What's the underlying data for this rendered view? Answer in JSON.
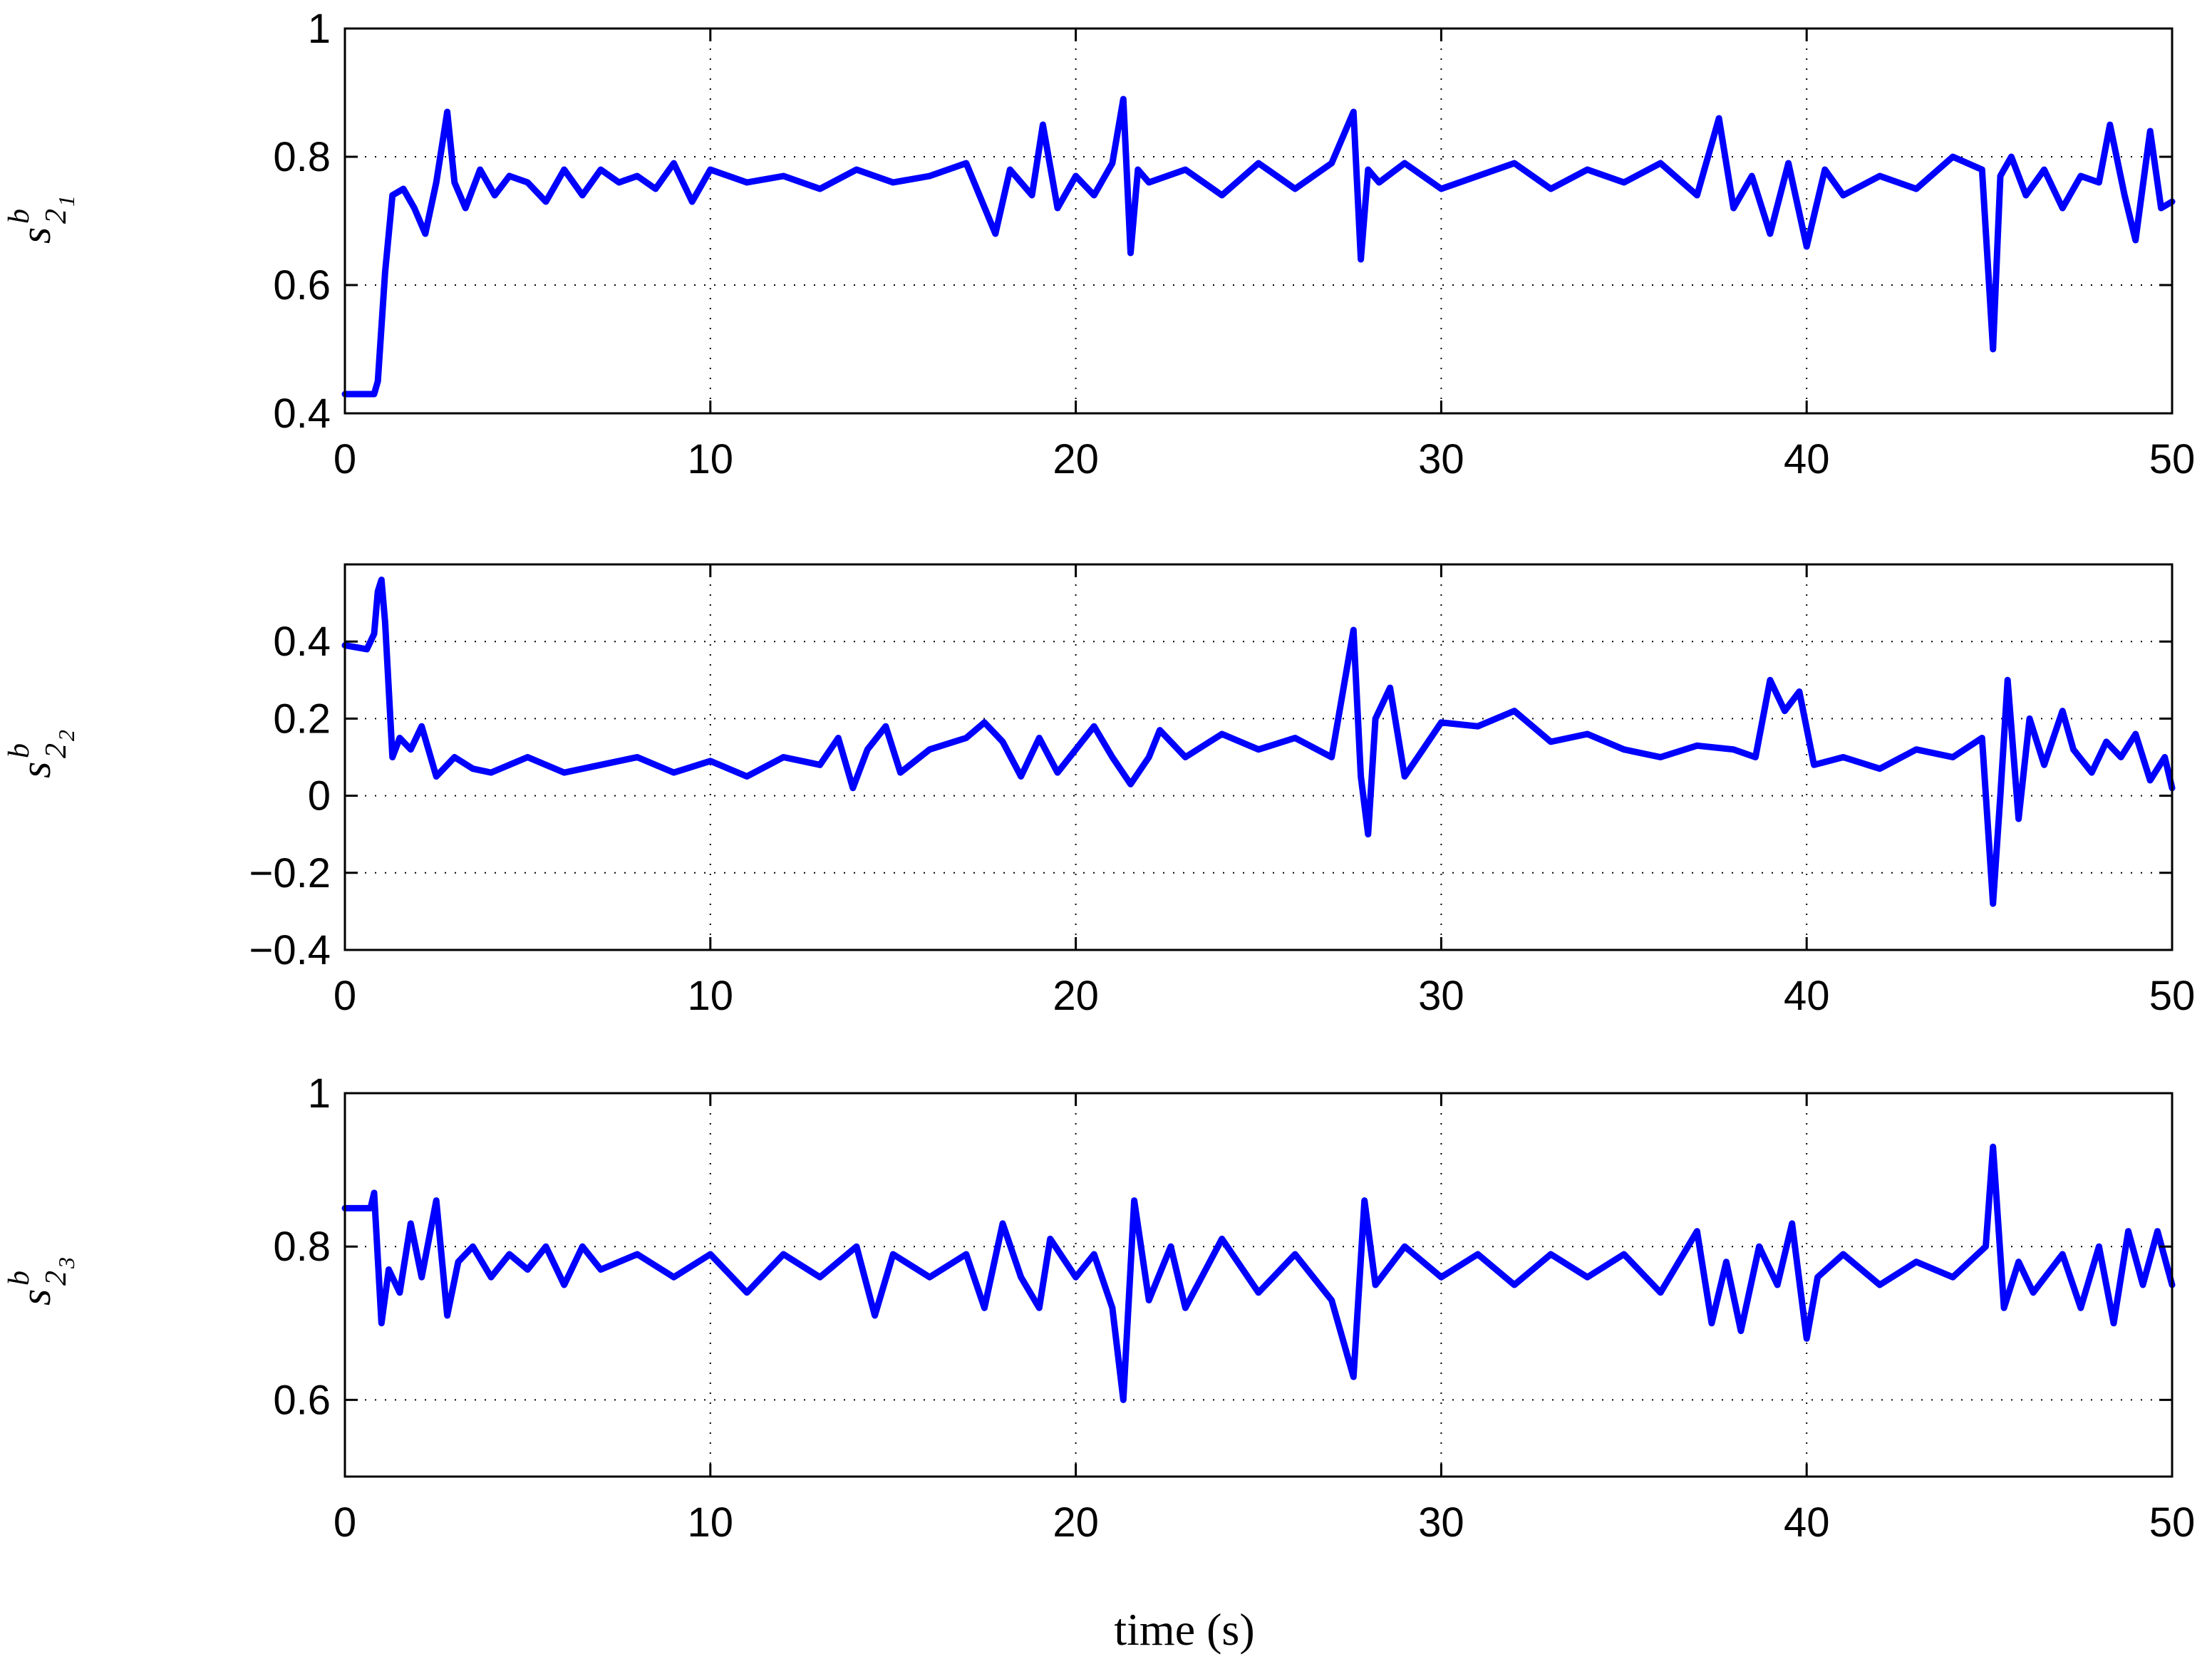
{
  "figure": {
    "xlabel": "time (s)",
    "line_color": "#0000ff"
  },
  "chart_data": [
    {
      "type": "line",
      "ylabel": {
        "base": "s",
        "sup": "b",
        "sub": "2",
        "subsub": "1"
      },
      "xlim": [
        0,
        50
      ],
      "ylim": [
        0.4,
        1
      ],
      "xticks": [
        0,
        10,
        20,
        30,
        40,
        50
      ],
      "yticks": [
        0.4,
        0.6,
        0.8,
        1
      ],
      "ytick_labels": [
        "0.4",
        "0.6",
        "0.8",
        "1"
      ],
      "grid": true,
      "series": [
        {
          "color": "#0000ff",
          "x": [
            0,
            0.8,
            0.9,
            1.1,
            1.3,
            1.6,
            1.9,
            2.2,
            2.5,
            2.8,
            3.0,
            3.3,
            3.7,
            4.1,
            4.5,
            5,
            5.5,
            6,
            6.5,
            7,
            7.5,
            8,
            8.5,
            9,
            9.5,
            10,
            11,
            12,
            13,
            14,
            15,
            16,
            17,
            17.8,
            18.2,
            18.8,
            19.1,
            19.5,
            20,
            20.5,
            21,
            21.3,
            21.5,
            21.7,
            22,
            23,
            24,
            25,
            26,
            27,
            27.6,
            27.8,
            28,
            28.3,
            29,
            30,
            31,
            32,
            33,
            34,
            35,
            36,
            37,
            37.6,
            38,
            38.5,
            39,
            39.5,
            40,
            40.5,
            41,
            42,
            43,
            44,
            44.8,
            45.1,
            45.3,
            45.6,
            46,
            46.5,
            47,
            47.5,
            48,
            48.3,
            48.7,
            49,
            49.4,
            49.7,
            50
          ],
          "y": [
            0.43,
            0.43,
            0.45,
            0.62,
            0.74,
            0.75,
            0.72,
            0.68,
            0.76,
            0.87,
            0.76,
            0.72,
            0.78,
            0.74,
            0.77,
            0.76,
            0.73,
            0.78,
            0.74,
            0.78,
            0.76,
            0.77,
            0.75,
            0.79,
            0.73,
            0.78,
            0.76,
            0.77,
            0.75,
            0.78,
            0.76,
            0.77,
            0.79,
            0.68,
            0.78,
            0.74,
            0.85,
            0.72,
            0.77,
            0.74,
            0.79,
            0.89,
            0.65,
            0.78,
            0.76,
            0.78,
            0.74,
            0.79,
            0.75,
            0.79,
            0.87,
            0.64,
            0.78,
            0.76,
            0.79,
            0.75,
            0.77,
            0.79,
            0.75,
            0.78,
            0.76,
            0.79,
            0.74,
            0.86,
            0.72,
            0.77,
            0.68,
            0.79,
            0.66,
            0.78,
            0.74,
            0.77,
            0.75,
            0.8,
            0.78,
            0.5,
            0.77,
            0.8,
            0.74,
            0.78,
            0.72,
            0.77,
            0.76,
            0.85,
            0.74,
            0.67,
            0.84,
            0.72,
            0.73
          ]
        }
      ]
    },
    {
      "type": "line",
      "ylabel": {
        "base": "s",
        "sup": "b",
        "sub": "2",
        "subsub": "2"
      },
      "xlim": [
        0,
        50
      ],
      "ylim": [
        -0.4,
        0.6
      ],
      "xticks": [
        0,
        10,
        20,
        30,
        40,
        50
      ],
      "yticks": [
        -0.4,
        -0.2,
        0,
        0.2,
        0.4
      ],
      "ytick_labels": [
        "−0.4",
        "−0.2",
        "0",
        "0.2",
        "0.4"
      ],
      "grid": true,
      "series": [
        {
          "color": "#0000ff",
          "x": [
            0,
            0.6,
            0.8,
            0.9,
            1.0,
            1.1,
            1.3,
            1.5,
            1.8,
            2.1,
            2.5,
            3,
            3.5,
            4,
            5,
            6,
            7,
            8,
            9,
            10,
            11,
            12,
            13,
            13.5,
            13.9,
            14.3,
            14.8,
            15.2,
            16,
            17,
            17.5,
            18,
            18.5,
            19,
            19.5,
            20,
            20.5,
            21,
            21.5,
            22,
            22.3,
            23,
            24,
            25,
            26,
            27,
            27.6,
            27.8,
            28,
            28.2,
            28.6,
            29,
            29.5,
            30,
            31,
            32,
            33,
            34,
            35,
            36,
            37,
            38,
            38.6,
            39,
            39.4,
            39.8,
            40.2,
            41,
            42,
            43,
            44,
            44.8,
            45.1,
            45.3,
            45.5,
            45.8,
            46.1,
            46.5,
            47,
            47.3,
            47.8,
            48.2,
            48.6,
            49,
            49.4,
            49.8,
            50
          ],
          "y": [
            0.39,
            0.38,
            0.42,
            0.53,
            0.56,
            0.45,
            0.1,
            0.15,
            0.12,
            0.18,
            0.05,
            0.1,
            0.07,
            0.06,
            0.1,
            0.06,
            0.08,
            0.1,
            0.06,
            0.09,
            0.05,
            0.1,
            0.08,
            0.15,
            0.02,
            0.12,
            0.18,
            0.06,
            0.12,
            0.15,
            0.19,
            0.14,
            0.05,
            0.15,
            0.06,
            0.12,
            0.18,
            0.1,
            0.03,
            0.1,
            0.17,
            0.1,
            0.16,
            0.12,
            0.15,
            0.1,
            0.43,
            0.05,
            -0.1,
            0.2,
            0.28,
            0.05,
            0.12,
            0.19,
            0.18,
            0.22,
            0.14,
            0.16,
            0.12,
            0.1,
            0.13,
            0.12,
            0.1,
            0.3,
            0.22,
            0.27,
            0.08,
            0.1,
            0.07,
            0.12,
            0.1,
            0.15,
            -0.28,
            0.0,
            0.3,
            -0.06,
            0.2,
            0.08,
            0.22,
            0.12,
            0.06,
            0.14,
            0.1,
            0.16,
            0.04,
            0.1,
            0.02
          ]
        }
      ]
    },
    {
      "type": "line",
      "ylabel": {
        "base": "s",
        "sup": "b",
        "sub": "2",
        "subsub": "3"
      },
      "xlim": [
        0,
        50
      ],
      "ylim": [
        0.5,
        1
      ],
      "xticks": [
        0,
        10,
        20,
        30,
        40,
        50
      ],
      "yticks": [
        0.6,
        0.8,
        1
      ],
      "ytick_labels": [
        "0.6",
        "0.8",
        "1"
      ],
      "grid": true,
      "series": [
        {
          "color": "#0000ff",
          "x": [
            0,
            0.7,
            0.8,
            1.0,
            1.2,
            1.5,
            1.8,
            2.1,
            2.5,
            2.8,
            3.1,
            3.5,
            4,
            4.5,
            5,
            5.5,
            6,
            6.5,
            7,
            8,
            9,
            10,
            11,
            12,
            13,
            14,
            14.5,
            15,
            16,
            17,
            17.5,
            18,
            18.5,
            19,
            19.3,
            20,
            20.5,
            21,
            21.3,
            21.6,
            22,
            22.6,
            23,
            24,
            25,
            26,
            27,
            27.6,
            27.9,
            28.2,
            29,
            30,
            31,
            32,
            33,
            34,
            35,
            36,
            37,
            37.4,
            37.8,
            38.2,
            38.7,
            39.2,
            39.6,
            40,
            40.3,
            41,
            42,
            43,
            44,
            44.9,
            45.1,
            45.4,
            45.8,
            46.2,
            47,
            47.5,
            48,
            48.4,
            48.8,
            49.2,
            49.6,
            50
          ],
          "y": [
            0.85,
            0.85,
            0.87,
            0.7,
            0.77,
            0.74,
            0.83,
            0.76,
            0.86,
            0.71,
            0.78,
            0.8,
            0.76,
            0.79,
            0.77,
            0.8,
            0.75,
            0.8,
            0.77,
            0.79,
            0.76,
            0.79,
            0.74,
            0.79,
            0.76,
            0.8,
            0.71,
            0.79,
            0.76,
            0.79,
            0.72,
            0.83,
            0.76,
            0.72,
            0.81,
            0.76,
            0.79,
            0.72,
            0.6,
            0.86,
            0.73,
            0.8,
            0.72,
            0.81,
            0.74,
            0.79,
            0.73,
            0.63,
            0.86,
            0.75,
            0.8,
            0.76,
            0.79,
            0.75,
            0.79,
            0.76,
            0.79,
            0.74,
            0.82,
            0.7,
            0.78,
            0.69,
            0.8,
            0.75,
            0.83,
            0.68,
            0.76,
            0.79,
            0.75,
            0.78,
            0.76,
            0.8,
            0.93,
            0.72,
            0.78,
            0.74,
            0.79,
            0.72,
            0.8,
            0.7,
            0.82,
            0.75,
            0.82,
            0.75
          ]
        }
      ]
    }
  ]
}
